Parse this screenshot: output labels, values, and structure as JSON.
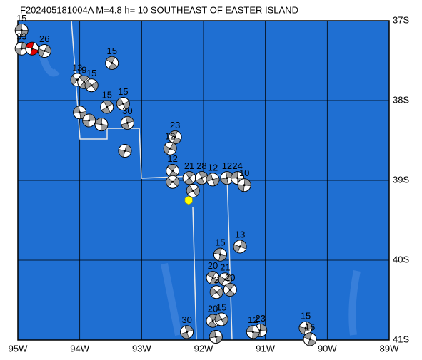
{
  "map": {
    "title": "F202405181004A M=4.8 h= 10 SOUTHEAST OF EASTER ISLAND",
    "xlim": [
      -95,
      -89
    ],
    "ylim": [
      -41,
      -37
    ],
    "xticks": [
      {
        "value": -95,
        "label": "95W"
      },
      {
        "value": -94,
        "label": "94W"
      },
      {
        "value": -93,
        "label": "93W"
      },
      {
        "value": -92,
        "label": "92W"
      },
      {
        "value": -91,
        "label": "91W"
      },
      {
        "value": -90,
        "label": "90W"
      },
      {
        "value": -89,
        "label": "89W"
      }
    ],
    "yticks": [
      {
        "value": -37,
        "label": "37S"
      },
      {
        "value": -38,
        "label": "38S"
      },
      {
        "value": -39,
        "label": "39S"
      },
      {
        "value": -40,
        "label": "40S"
      },
      {
        "value": -41,
        "label": "41S"
      }
    ],
    "epicenter": {
      "lon": -92.24,
      "lat": -39.25,
      "color": "#ffff00"
    },
    "events": [
      {
        "lon": -94.94,
        "lat": -37.12,
        "label": "15"
      },
      {
        "lon": -94.94,
        "lat": -37.35,
        "label": "33"
      },
      {
        "lon": -94.77,
        "lat": -37.35,
        "color": "#e00000"
      },
      {
        "lon": -94.57,
        "lat": -37.38,
        "label": "26"
      },
      {
        "lon": -93.48,
        "lat": -37.53,
        "label": "15"
      },
      {
        "lon": -94.04,
        "lat": -37.74,
        "label": "13"
      },
      {
        "lon": -93.93,
        "lat": -37.77,
        "label": "9"
      },
      {
        "lon": -93.81,
        "lat": -37.81,
        "label": "15"
      },
      {
        "lon": -93.56,
        "lat": -38.08,
        "label": "15"
      },
      {
        "lon": -93.3,
        "lat": -38.04,
        "label": "15"
      },
      {
        "lon": -93.23,
        "lat": -38.28,
        "label": "30"
      },
      {
        "lon": -94.0,
        "lat": -38.15
      },
      {
        "lon": -93.85,
        "lat": -38.25
      },
      {
        "lon": -93.65,
        "lat": -38.3
      },
      {
        "lon": -93.27,
        "lat": -38.63
      },
      {
        "lon": -92.46,
        "lat": -38.46,
        "label": "23"
      },
      {
        "lon": -92.54,
        "lat": -38.6,
        "label": "12"
      },
      {
        "lon": -92.5,
        "lat": -38.88,
        "label": "12"
      },
      {
        "lon": -92.5,
        "lat": -39.02
      },
      {
        "lon": -92.23,
        "lat": -38.97,
        "label": "21"
      },
      {
        "lon": -92.17,
        "lat": -39.13
      },
      {
        "lon": -92.03,
        "lat": -38.97,
        "label": "28"
      },
      {
        "lon": -91.85,
        "lat": -38.99,
        "label": "12"
      },
      {
        "lon": -91.62,
        "lat": -38.97,
        "label": "12"
      },
      {
        "lon": -91.45,
        "lat": -38.97,
        "label": "24"
      },
      {
        "lon": -91.34,
        "lat": -39.06,
        "label": "10"
      },
      {
        "lon": -91.73,
        "lat": -39.93,
        "label": "15"
      },
      {
        "lon": -91.41,
        "lat": -39.83,
        "label": "13"
      },
      {
        "lon": -91.85,
        "lat": -40.22,
        "label": "20"
      },
      {
        "lon": -91.65,
        "lat": -40.24,
        "label": "21"
      },
      {
        "lon": -91.57,
        "lat": -40.37,
        "label": "20"
      },
      {
        "lon": -91.79,
        "lat": -40.4,
        "label": "2"
      },
      {
        "lon": -91.85,
        "lat": -40.76,
        "label": "20"
      },
      {
        "lon": -91.71,
        "lat": -40.74,
        "label": "15"
      },
      {
        "lon": -92.27,
        "lat": -40.9,
        "label": "30"
      },
      {
        "lon": -91.8,
        "lat": -40.96
      },
      {
        "lon": -91.08,
        "lat": -40.88,
        "label": "23"
      },
      {
        "lon": -91.2,
        "lat": -40.9,
        "label": "12"
      },
      {
        "lon": -90.35,
        "lat": -40.85,
        "label": "15"
      },
      {
        "lon": -90.28,
        "lat": -40.99,
        "label": "15"
      }
    ]
  }
}
